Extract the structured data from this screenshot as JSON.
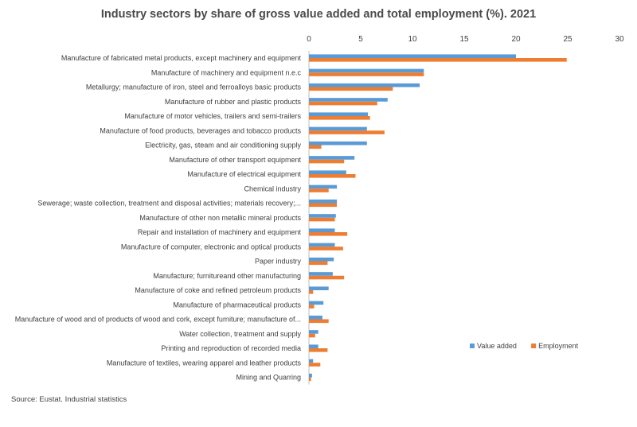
{
  "chart_data": {
    "type": "bar",
    "orientation": "horizontal",
    "title": "Industry sectors by share of gross value added and total employment (%). 2021",
    "xlabel": "",
    "ylabel": "",
    "xlim": [
      0,
      30
    ],
    "xticks": [
      "0",
      "5",
      "10",
      "15",
      "20",
      "25",
      "30"
    ],
    "axis_position": "top",
    "grid": false,
    "legend_position": "bottom-right",
    "categories": [
      "Manufacture of fabricated metal products, except machinery and equipment",
      "Manufacture of machinery and equipment n.e.c",
      "Metallurgy; manufacture of iron, steel and ferroalloys basic products",
      "Manufacture of rubber and plastic products",
      "Manufacture of motor vehicles, trailers and semi-trailers",
      "Manufacture of food products, beverages and tobacco products",
      "Electricity, gas, steam and air conditioning supply",
      "Manufacture of other transport equipment",
      "Manufacture of electrical equipment",
      "Chemical industry",
      "Sewerage; waste collection, treatment and disposal activities; materials recovery;...",
      "Manufacture of other non metallic mineral products",
      "Repair and installation of machinery and equipment",
      "Manufacture of computer, electronic and optical products",
      "Paper industry",
      "Manufacture; furnitureand other manufacturing",
      "Manufacture of coke and refined petroleum products",
      "Manufacture of pharmaceutical products",
      "Manufacture of wood and of products of wood and cork, except furniture; manufacture of...",
      "Water collection, treatment and supply",
      "Printing and reproduction of recorded media",
      "Manufacture of textiles, wearing apparel and leather products",
      "Mining and Quarring"
    ],
    "series": [
      {
        "name": "Value added",
        "color": "#5B9BD5",
        "values": [
          20.0,
          11.1,
          10.7,
          7.6,
          5.7,
          5.6,
          5.6,
          4.4,
          3.6,
          2.7,
          2.7,
          2.6,
          2.5,
          2.5,
          2.4,
          2.3,
          1.9,
          1.4,
          1.3,
          0.9,
          0.9,
          0.4,
          0.3
        ]
      },
      {
        "name": "Employment",
        "color": "#ED7D31",
        "values": [
          24.9,
          11.1,
          8.1,
          6.6,
          5.9,
          7.3,
          1.2,
          3.4,
          4.5,
          1.9,
          2.7,
          2.5,
          3.7,
          3.3,
          1.8,
          3.4,
          0.4,
          0.5,
          1.9,
          0.6,
          1.8,
          1.1,
          0.2
        ]
      }
    ]
  },
  "source": "Source: Eustat. Industrial statistics"
}
